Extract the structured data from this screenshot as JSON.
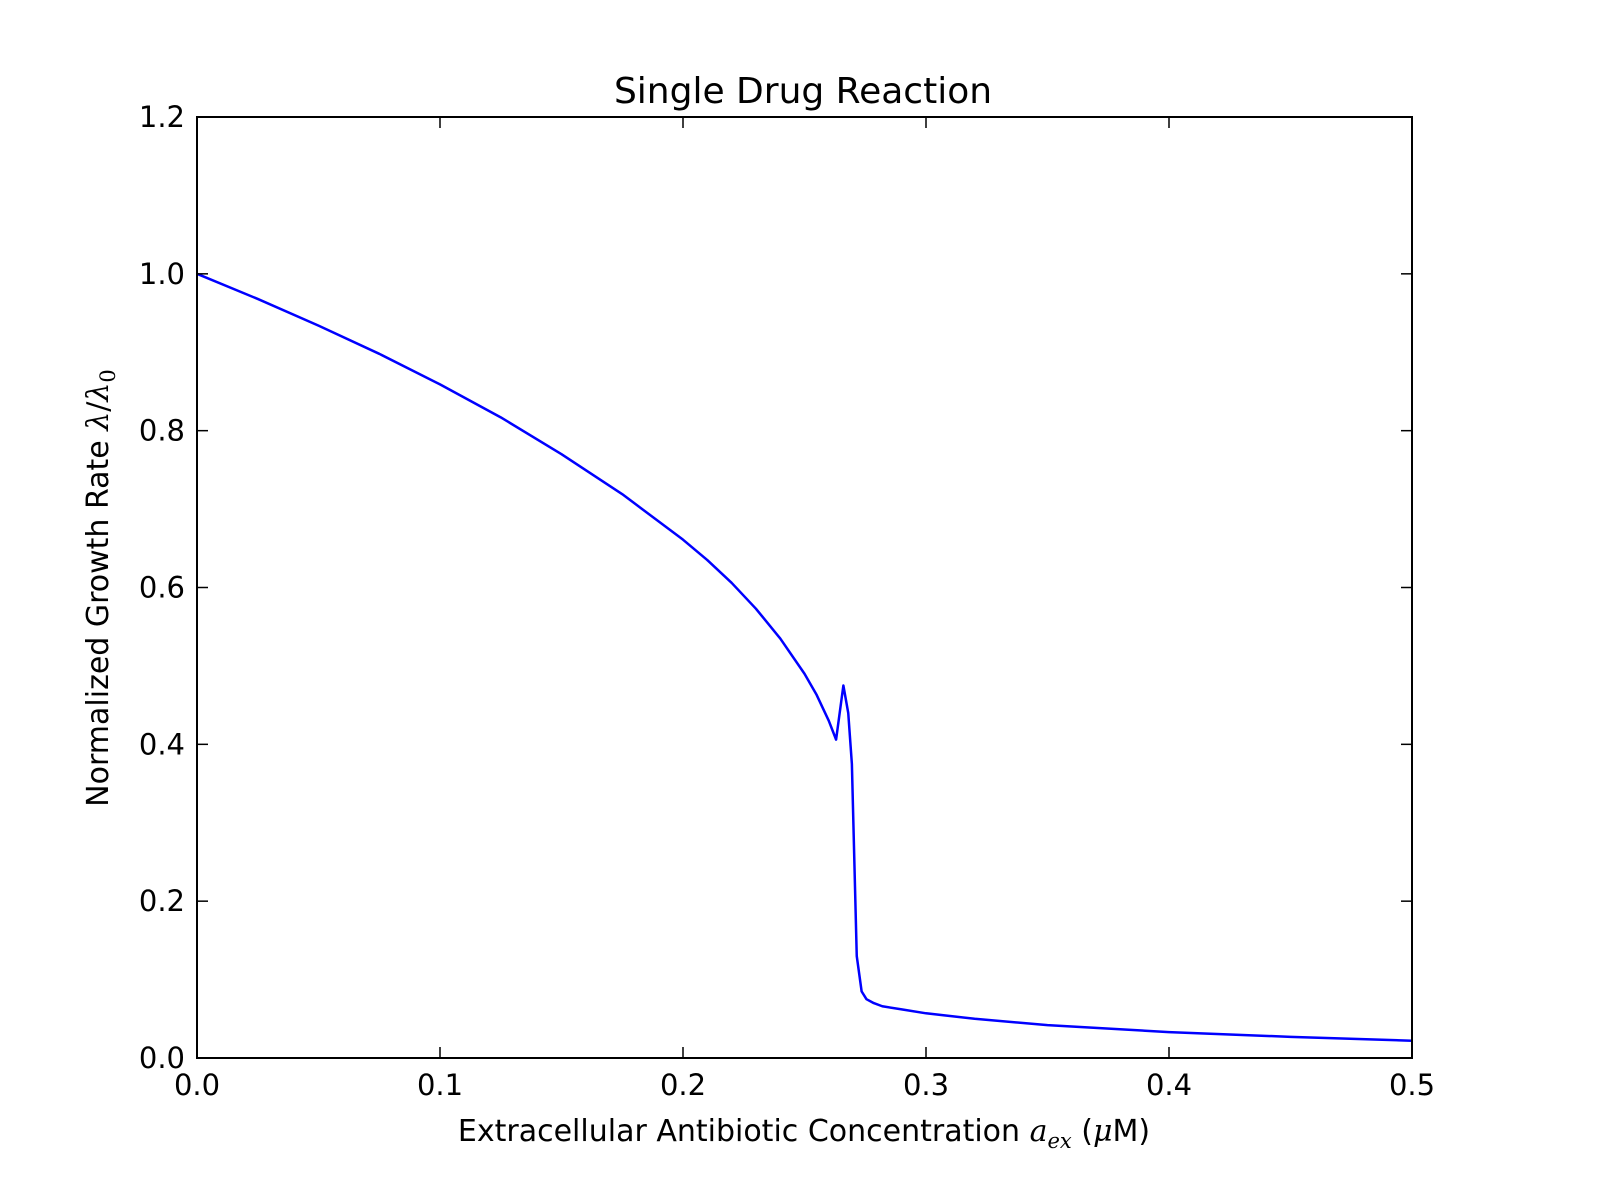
{
  "chart_data": {
    "type": "line",
    "title": "Single Drug Reaction",
    "xlabel": {
      "prefix": "Extracellular Antibiotic Concentration ",
      "symbol": "a",
      "subscript": "ex",
      "unit_open": " (",
      "unit_mu": "μ",
      "unit_rest": "M)"
    },
    "ylabel": {
      "prefix": "Normalized Growth Rate ",
      "numerator": "λ",
      "slash": "/",
      "denominator": "λ",
      "denominator_subscript": "0"
    },
    "xlim": [
      0.0,
      0.5
    ],
    "ylim": [
      0.0,
      1.2
    ],
    "xticks": [
      0.0,
      0.1,
      0.2,
      0.3,
      0.4,
      0.5
    ],
    "xtick_labels": [
      "0.0",
      "0.1",
      "0.2",
      "0.3",
      "0.4",
      "0.5"
    ],
    "yticks": [
      0.0,
      0.2,
      0.4,
      0.6,
      0.8,
      1.0,
      1.2
    ],
    "ytick_labels": [
      "0.0",
      "0.2",
      "0.4",
      "0.6",
      "0.8",
      "1.0",
      "1.2"
    ],
    "grid": false,
    "line_color": "#0000ff",
    "series": [
      {
        "x": [
          0.0,
          0.025,
          0.05,
          0.075,
          0.1,
          0.125,
          0.15,
          0.175,
          0.2,
          0.21,
          0.22,
          0.23,
          0.24,
          0.25,
          0.255,
          0.26,
          0.263,
          0.266,
          0.268,
          0.2695,
          0.2715,
          0.2735,
          0.2755,
          0.2785,
          0.282,
          0.29,
          0.3,
          0.32,
          0.35,
          0.4,
          0.45,
          0.5
        ],
        "y": [
          1.0,
          0.968,
          0.934,
          0.898,
          0.859,
          0.817,
          0.77,
          0.719,
          0.661,
          0.635,
          0.606,
          0.573,
          0.535,
          0.49,
          0.463,
          0.43,
          0.406,
          0.475,
          0.44,
          0.375,
          0.13,
          0.085,
          0.075,
          0.07,
          0.066,
          0.062,
          0.057,
          0.05,
          0.042,
          0.033,
          0.027,
          0.022
        ]
      }
    ]
  }
}
